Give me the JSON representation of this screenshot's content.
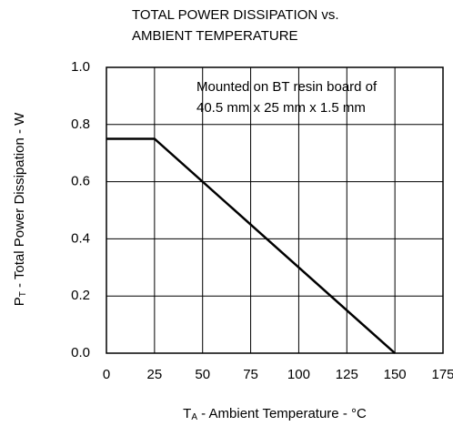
{
  "chart_data": {
    "type": "line",
    "title": [
      "TOTAL POWER DISSIPATION vs.",
      "AMBIENT TEMPERATURE"
    ],
    "xlabel": {
      "main": "T",
      "sub": "A",
      "rest": " - Ambient Temperature - °C"
    },
    "ylabel": {
      "main": "P",
      "sub": "T",
      "rest": " - Total Power Dissipation - W"
    },
    "annotation": [
      "Mounted on BT resin board of",
      "40.5 mm x 25 mm x 1.5 mm"
    ],
    "x": [
      0,
      25,
      150
    ],
    "series": [
      {
        "color": "#000000",
        "values": [
          0.75,
          0.75,
          0
        ]
      }
    ],
    "xlim": [
      0,
      175
    ],
    "xticks": [
      0,
      25,
      50,
      75,
      100,
      125,
      150,
      175
    ],
    "ylim": [
      0,
      1
    ],
    "yticks": [
      {
        "value": 0,
        "label": "0.0"
      },
      {
        "value": 0.2,
        "label": "0.2"
      },
      {
        "value": 0.4,
        "label": "0.4"
      },
      {
        "value": 0.6,
        "label": "0.6"
      },
      {
        "value": 0.8,
        "label": "0.8"
      },
      {
        "value": 1,
        "label": "1.0"
      }
    ],
    "grid": true
  }
}
